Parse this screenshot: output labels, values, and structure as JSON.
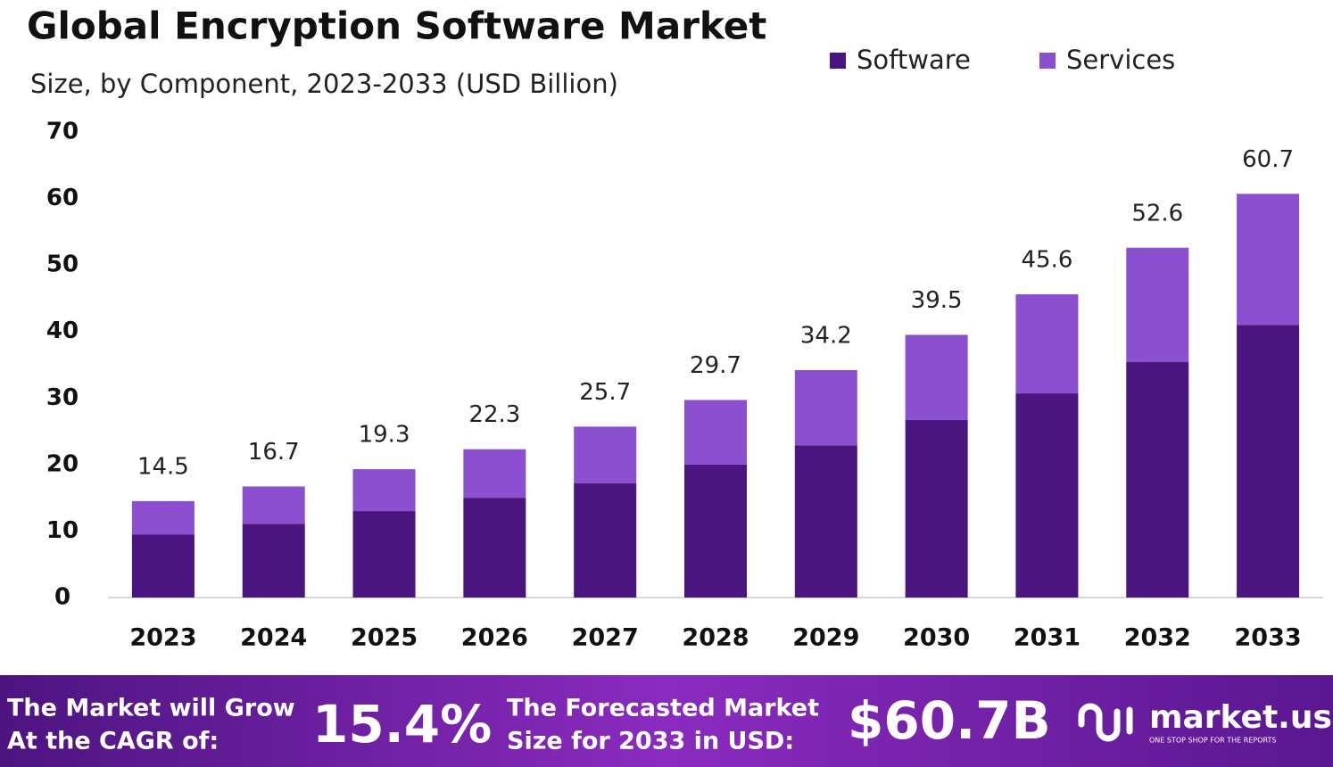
{
  "chart_data": {
    "type": "stacked_bar",
    "title": "Global Encryption Software Market",
    "subtitle": "Size, by Component, 2023-2033 (USD Billion)",
    "categories": [
      "2023",
      "2024",
      "2025",
      "2026",
      "2027",
      "2028",
      "2029",
      "2030",
      "2031",
      "2032",
      "2033"
    ],
    "series": [
      {
        "name": "Software",
        "color": "#4b1580",
        "values": [
          9.5,
          11.1,
          13.0,
          15.0,
          17.2,
          20.0,
          22.9,
          26.7,
          30.7,
          35.4,
          41.0
        ]
      },
      {
        "name": "Services",
        "color": "#8c4fd0",
        "values": [
          5.0,
          5.6,
          6.3,
          7.3,
          8.5,
          9.7,
          11.3,
          12.8,
          14.9,
          17.2,
          19.7
        ]
      }
    ],
    "total_labels": [
      14.5,
      16.7,
      19.3,
      22.3,
      25.7,
      29.7,
      34.2,
      39.5,
      45.6,
      52.6,
      60.7
    ],
    "ylim": [
      0,
      70
    ],
    "yticks": [
      0,
      10,
      20,
      30,
      40,
      50,
      60,
      70
    ],
    "grid": false,
    "legend": "top-right"
  },
  "footer": {
    "cagr_text": [
      "The Market will Grow",
      "At the CAGR of:"
    ],
    "cagr_value": "15.4%",
    "forecast_text": [
      "The Forecasted Market",
      "Size for 2033 in USD:"
    ],
    "forecast_value": "$60.7B",
    "brand": "market.us",
    "tagline": "ONE STOP SHOP FOR THE REPORTS"
  }
}
